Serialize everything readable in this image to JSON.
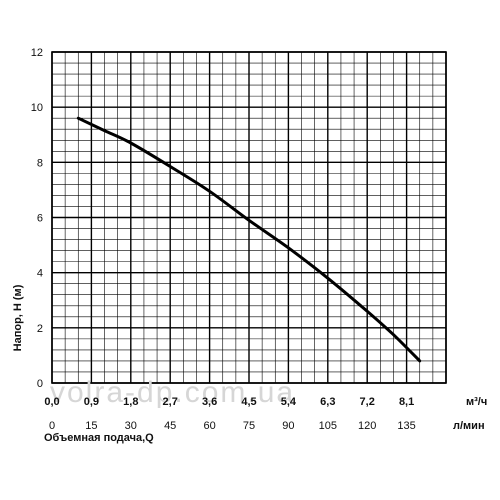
{
  "chart_data": {
    "type": "line",
    "title": "",
    "ylabel": "Напор, Н (м)",
    "xlabel": "Объемная подача,Q",
    "ylim": [
      0,
      12
    ],
    "yticks": [
      "0",
      "2",
      "4",
      "6",
      "8",
      "10",
      "12"
    ],
    "x_unit_top": "м³/ч",
    "x_unit_bottom": "л/мин",
    "xticks_top": [
      "0,0",
      "0,9",
      "1,8",
      "2,7",
      "3,6",
      "4,5",
      "5,4",
      "6,3",
      "7,2",
      "8,1"
    ],
    "xticks_bottom": [
      "0",
      "15",
      "30",
      "45",
      "60",
      "75",
      "90",
      "105",
      "120",
      "135"
    ],
    "xlim": [
      0,
      150
    ],
    "grid": true,
    "series": [
      {
        "x": [
          10,
          20,
          30,
          45,
          60,
          75,
          90,
          105,
          120,
          130,
          140
        ],
        "y": [
          9.6,
          9.15,
          8.7,
          7.85,
          6.95,
          5.9,
          4.9,
          3.8,
          2.6,
          1.75,
          0.8
        ]
      }
    ]
  },
  "watermark": "volra-dp.com.ua"
}
